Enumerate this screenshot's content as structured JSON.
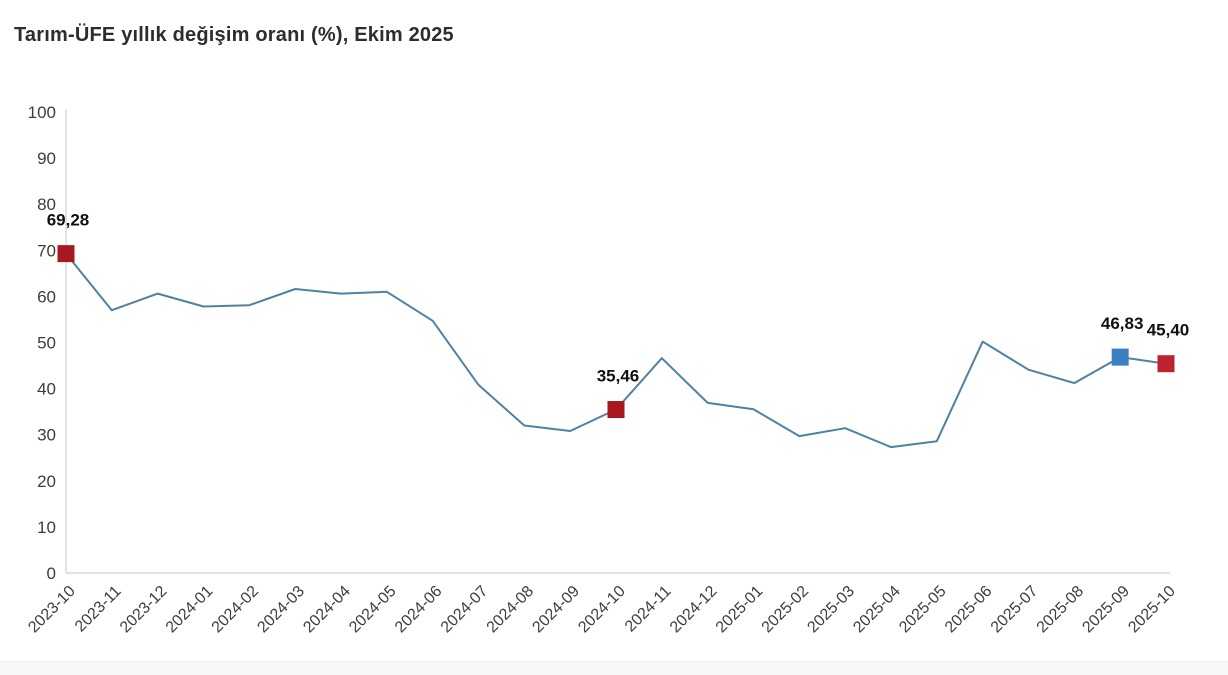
{
  "page": {
    "title": "Tarım-ÜFE yıllık değişim oranı (%), Ekim 2025"
  },
  "colors": {
    "line": "#4f81a3",
    "axis": "#d9d9d9",
    "tick_text": "#3d3d3d",
    "data_label_text": "#111111",
    "marker_dark_red": "#a8191f",
    "marker_bright_red": "#c0212e",
    "marker_blue": "#3c7fc0",
    "title_text": "#2d2d2d"
  },
  "chart_data": {
    "type": "line",
    "title": "Tarım-ÜFE yıllık değişim oranı (%), Ekim 2025",
    "x": [
      "2023-10",
      "2023-11",
      "2023-12",
      "2024-01",
      "2024-02",
      "2024-03",
      "2024-04",
      "2024-05",
      "2024-06",
      "2024-07",
      "2024-08",
      "2024-09",
      "2024-10",
      "2024-11",
      "2024-12",
      "2025-01",
      "2025-02",
      "2025-03",
      "2025-04",
      "2025-05",
      "2025-06",
      "2025-07",
      "2025-08",
      "2025-09",
      "2025-10"
    ],
    "values": [
      69.28,
      57.0,
      60.6,
      57.8,
      58.1,
      61.6,
      60.6,
      61.0,
      54.7,
      40.8,
      32.0,
      30.8,
      35.46,
      46.6,
      36.9,
      35.5,
      29.7,
      31.4,
      27.3,
      28.6,
      50.2,
      44.1,
      41.2,
      46.83,
      45.4
    ],
    "ylim": [
      0,
      100
    ],
    "yticks": [
      0,
      10,
      20,
      30,
      40,
      50,
      60,
      70,
      80,
      90,
      100
    ],
    "grid": false,
    "legend": "none",
    "xlabel": "",
    "ylabel": "",
    "annotations": [
      {
        "x": "2023-10",
        "value": 69.28,
        "label": "69,28",
        "marker_color": "#a8191f"
      },
      {
        "x": "2024-10",
        "value": 35.46,
        "label": "35,46",
        "marker_color": "#a8191f"
      },
      {
        "x": "2025-09",
        "value": 46.83,
        "label": "46,83",
        "marker_color": "#3c7fc0"
      },
      {
        "x": "2025-10",
        "value": 45.4,
        "label": "45,40",
        "marker_color": "#c0212e"
      }
    ]
  }
}
